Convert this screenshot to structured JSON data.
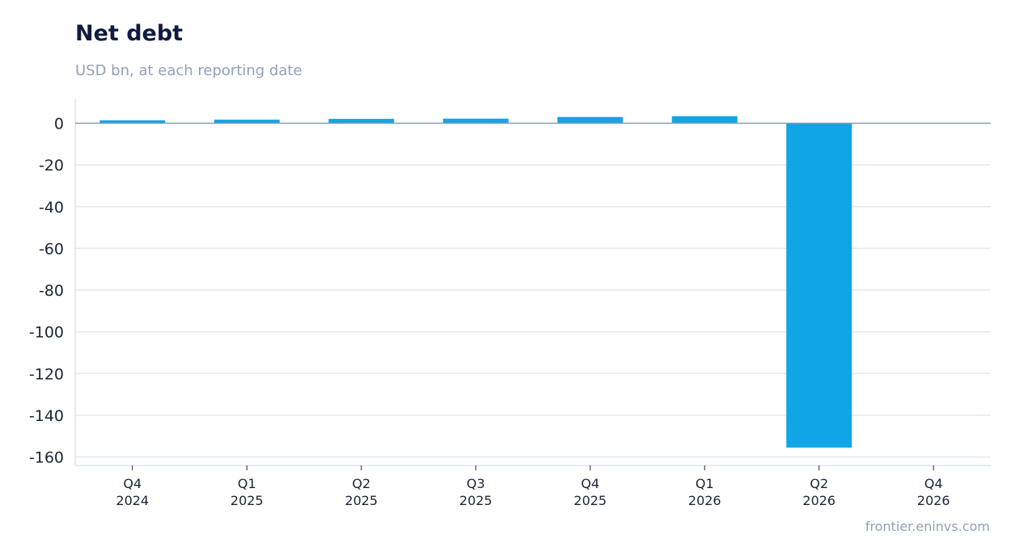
{
  "header": {
    "title": "Net debt",
    "subtitle": "USD bn, at each reporting date"
  },
  "footer": {
    "source": "frontier.eninvs.com"
  },
  "chart_data": {
    "type": "bar",
    "title": "Net debt",
    "subtitle": "USD bn, at each reporting date",
    "categories": [
      [
        "Q4",
        "2024"
      ],
      [
        "Q1",
        "2025"
      ],
      [
        "Q2",
        "2025"
      ],
      [
        "Q3",
        "2025"
      ],
      [
        "Q4",
        "2025"
      ],
      [
        "Q1",
        "2026"
      ],
      [
        "Q2",
        "2026"
      ],
      [
        "Q4",
        "2026"
      ]
    ],
    "values": [
      1.4,
      1.7,
      2.1,
      2.2,
      3.0,
      3.4,
      -155.5,
      null
    ],
    "y_ticks": [
      0,
      -20,
      -40,
      -60,
      -80,
      -100,
      -120,
      -140,
      -160
    ],
    "ylim": [
      -163,
      11
    ],
    "grid": true,
    "legend": "none",
    "colors": {
      "bar": "#10a5e6",
      "grid": "#e3e8ee",
      "zero_line": "#8a9bb0",
      "axis": "#dfe4ea"
    }
  }
}
